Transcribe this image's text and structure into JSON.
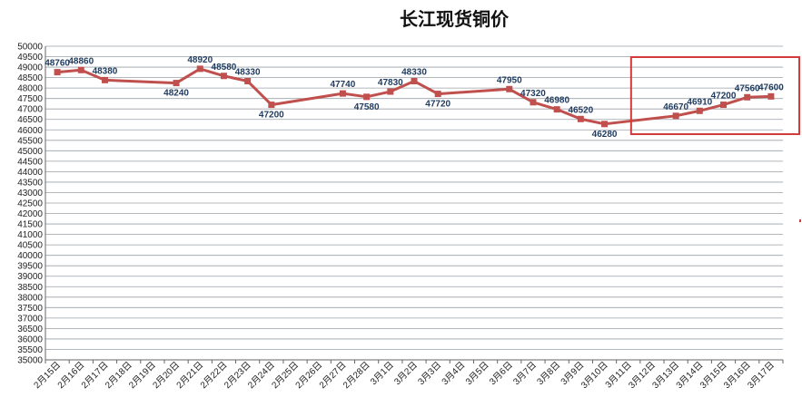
{
  "colors": {
    "series": "#c0504d",
    "highlight_box": "#d33b3b",
    "grid": "#9aa0a6",
    "label": "#1f3b5f"
  },
  "chart_data": {
    "type": "line",
    "title": "长江现货铜价",
    "xlabel": "",
    "ylabel": "",
    "ylim": [
      35000,
      50000
    ],
    "ytick_step": 500,
    "grid": true,
    "legend": "none",
    "categories": [
      "2月15日",
      "2月16日",
      "2月17日",
      "2月18日",
      "2月19日",
      "2月20日",
      "2月21日",
      "2月22日",
      "2月23日",
      "2月24日",
      "2月25日",
      "2月26日",
      "2月27日",
      "2月28日",
      "3月1日",
      "3月2日",
      "3月3日",
      "3月4日",
      "3月5日",
      "3月6日",
      "3月7日",
      "3月8日",
      "3月9日",
      "3月10日",
      "3月11日",
      "3月12日",
      "3月13日",
      "3月14日",
      "3月15日",
      "3月16日",
      "3月17日"
    ],
    "series": [
      {
        "values": [
          48760,
          48860,
          48380,
          null,
          null,
          48240,
          48920,
          48580,
          48330,
          47200,
          null,
          null,
          47740,
          47580,
          47830,
          48330,
          47720,
          null,
          null,
          47950,
          47320,
          46980,
          46520,
          46280,
          null,
          null,
          46670,
          46910,
          47200,
          47560,
          47600
        ]
      }
    ],
    "annotations": [
      {
        "type": "highlight-box",
        "from": "3月12日",
        "to": "3月17日",
        "color": "#d33b3b"
      }
    ]
  }
}
